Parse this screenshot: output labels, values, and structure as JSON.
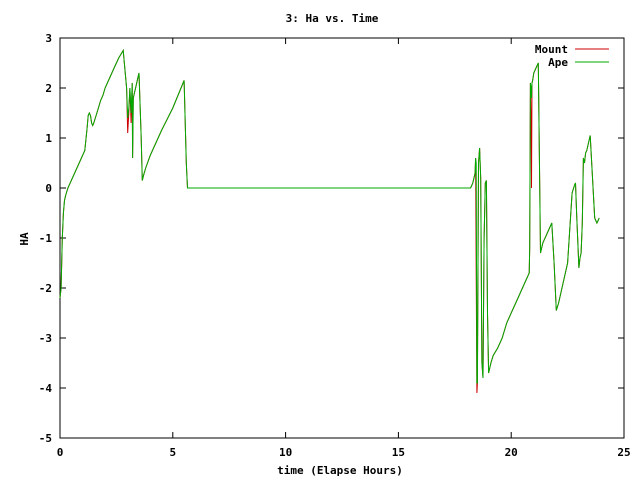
{
  "chart_data": {
    "type": "line",
    "title": "3: Ha vs. Time",
    "xlabel": "time (Elapse Hours)",
    "ylabel": "HA",
    "xlim": [
      0,
      25
    ],
    "ylim": [
      -5,
      3
    ],
    "xticks": [
      0,
      5,
      10,
      15,
      20,
      25
    ],
    "yticks": [
      -5,
      -4,
      -3,
      -2,
      -1,
      0,
      1,
      2,
      3
    ],
    "grid": false,
    "legend_position": "top-right",
    "series": [
      {
        "name": "Mount",
        "color": "#cc0000",
        "x": [
          0.0,
          0.05,
          0.1,
          0.15,
          0.2,
          0.25,
          0.35,
          0.5,
          0.7,
          0.9,
          1.1,
          1.2,
          1.25,
          1.3,
          1.35,
          1.4,
          1.45,
          1.5,
          1.6,
          1.7,
          1.8,
          1.9,
          2.0,
          2.2,
          2.4,
          2.6,
          2.8,
          2.95,
          3.0,
          3.05,
          3.1,
          3.15,
          3.2,
          3.22,
          3.25,
          3.3,
          3.35,
          3.4,
          3.45,
          3.5,
          3.6,
          3.65,
          3.7,
          3.8,
          4.0,
          4.5,
          5.0,
          5.5,
          5.6,
          5.65,
          5.7,
          6.0,
          10.0,
          15.0,
          18.2,
          18.3,
          18.4,
          18.42,
          18.45,
          18.48,
          18.5,
          18.55,
          18.6,
          18.65,
          18.7,
          18.75,
          18.8,
          18.85,
          18.9,
          18.95,
          19.0,
          19.1,
          19.2,
          19.4,
          19.6,
          19.8,
          20.0,
          20.3,
          20.6,
          20.8,
          20.82,
          20.85,
          20.88,
          20.9,
          20.92,
          20.95,
          21.0,
          21.1,
          21.2,
          21.3,
          21.4,
          21.6,
          21.8,
          21.9,
          22.0,
          22.1,
          22.3,
          22.5,
          22.7,
          22.8,
          22.85,
          22.9,
          23.0,
          23.05,
          23.1,
          23.15,
          23.2,
          23.25,
          23.3,
          23.35,
          23.4,
          23.5,
          23.7,
          23.8,
          23.85,
          23.9
        ],
        "y": [
          -2.2,
          -2.0,
          -1.0,
          -0.5,
          -0.25,
          -0.15,
          0.0,
          0.15,
          0.35,
          0.55,
          0.75,
          1.2,
          1.45,
          1.5,
          1.45,
          1.3,
          1.25,
          1.3,
          1.45,
          1.6,
          1.75,
          1.85,
          2.0,
          2.2,
          2.4,
          2.6,
          2.75,
          2.0,
          1.1,
          1.5,
          2.0,
          1.3,
          2.1,
          0.6,
          1.8,
          1.9,
          2.0,
          2.1,
          2.2,
          2.3,
          1.0,
          0.15,
          0.25,
          0.4,
          0.65,
          1.15,
          1.6,
          2.15,
          0.5,
          0.0,
          0.0,
          0.0,
          0.0,
          0.0,
          0.0,
          0.1,
          0.3,
          0.6,
          -1.7,
          -4.1,
          -3.9,
          0.5,
          0.8,
          0.2,
          -3.5,
          -3.8,
          -1.0,
          0.1,
          0.15,
          -2.5,
          -3.7,
          -3.5,
          -3.35,
          -3.2,
          -3.0,
          -2.7,
          -2.5,
          -2.2,
          -1.9,
          -1.7,
          -1.2,
          2.1,
          1.2,
          0.0,
          2.1,
          2.15,
          2.3,
          2.4,
          2.5,
          -1.3,
          -1.1,
          -0.9,
          -0.7,
          -1.5,
          -2.45,
          -2.3,
          -1.9,
          -1.5,
          -0.1,
          0.05,
          0.1,
          -0.5,
          -1.6,
          -1.4,
          -1.3,
          -0.7,
          0.6,
          0.5,
          0.7,
          0.75,
          0.85,
          1.05,
          -0.6,
          -0.7,
          -0.65,
          -0.6
        ]
      },
      {
        "name": "Ape",
        "color": "#00aa00",
        "x": [
          0.0,
          0.05,
          0.1,
          0.15,
          0.2,
          0.25,
          0.35,
          0.5,
          0.7,
          0.9,
          1.1,
          1.2,
          1.25,
          1.3,
          1.35,
          1.4,
          1.45,
          1.5,
          1.6,
          1.7,
          1.8,
          1.9,
          2.0,
          2.2,
          2.4,
          2.6,
          2.8,
          2.95,
          3.0,
          3.05,
          3.1,
          3.15,
          3.2,
          3.22,
          3.25,
          3.3,
          3.35,
          3.4,
          3.45,
          3.5,
          3.6,
          3.65,
          3.7,
          3.8,
          4.0,
          4.5,
          5.0,
          5.5,
          5.6,
          5.65,
          5.7,
          6.0,
          10.0,
          15.0,
          18.2,
          18.3,
          18.4,
          18.42,
          18.45,
          18.48,
          18.5,
          18.55,
          18.6,
          18.65,
          18.7,
          18.75,
          18.8,
          18.85,
          18.9,
          18.95,
          19.0,
          19.1,
          19.2,
          19.4,
          19.6,
          19.8,
          20.0,
          20.3,
          20.6,
          20.8,
          20.82,
          20.85,
          20.88,
          20.9,
          20.92,
          20.95,
          21.0,
          21.1,
          21.2,
          21.3,
          21.4,
          21.6,
          21.8,
          21.9,
          22.0,
          22.1,
          22.3,
          22.5,
          22.7,
          22.8,
          22.85,
          22.9,
          23.0,
          23.05,
          23.1,
          23.15,
          23.2,
          23.25,
          23.3,
          23.35,
          23.4,
          23.5,
          23.7,
          23.8,
          23.85,
          23.9
        ],
        "y": [
          -2.2,
          -2.0,
          -1.0,
          -0.5,
          -0.25,
          -0.15,
          0.0,
          0.15,
          0.35,
          0.55,
          0.75,
          1.2,
          1.45,
          1.5,
          1.45,
          1.3,
          1.25,
          1.3,
          1.45,
          1.6,
          1.75,
          1.85,
          2.0,
          2.2,
          2.4,
          2.6,
          2.75,
          2.0,
          1.4,
          1.6,
          2.0,
          1.5,
          2.1,
          0.6,
          1.8,
          1.9,
          2.0,
          2.1,
          2.2,
          2.3,
          1.0,
          0.15,
          0.25,
          0.4,
          0.65,
          1.15,
          1.6,
          2.15,
          0.5,
          0.0,
          0.0,
          0.0,
          0.0,
          0.0,
          0.0,
          0.1,
          0.3,
          0.6,
          0.5,
          -3.9,
          -3.9,
          0.5,
          0.8,
          0.2,
          -3.5,
          -3.8,
          -1.0,
          0.1,
          0.15,
          -2.5,
          -3.7,
          -3.5,
          -3.35,
          -3.2,
          -3.0,
          -2.7,
          -2.5,
          -2.2,
          -1.9,
          -1.7,
          -1.2,
          2.1,
          2.0,
          1.8,
          2.1,
          2.15,
          2.3,
          2.4,
          2.5,
          -1.3,
          -1.1,
          -0.9,
          -0.7,
          -1.5,
          -2.45,
          -2.3,
          -1.9,
          -1.5,
          -0.1,
          0.05,
          0.1,
          -0.5,
          -1.6,
          -1.4,
          -1.3,
          -0.7,
          0.6,
          0.5,
          0.7,
          0.75,
          0.85,
          1.05,
          -0.6,
          -0.7,
          -0.65,
          -0.6
        ]
      }
    ]
  }
}
